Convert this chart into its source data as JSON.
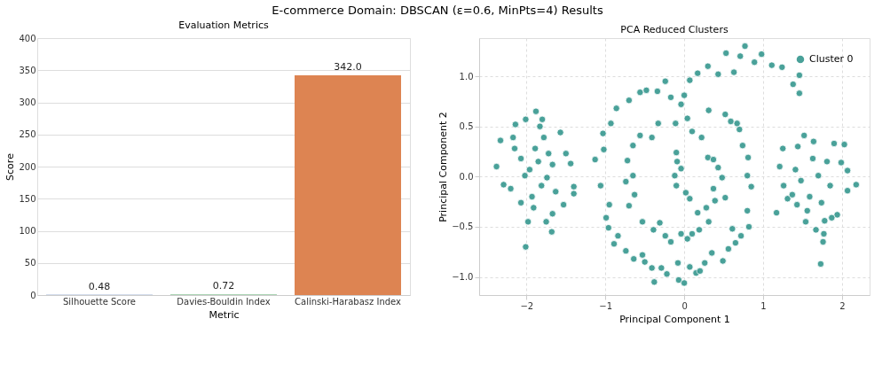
{
  "chart_data": [
    {
      "type": "bar",
      "title": "Evaluation Metrics",
      "xlabel": "Metric",
      "ylabel": "Score",
      "annotations": [
        "E-commerce Domain: DBSCAN (ε=0.6, MinPts=4) Results"
      ],
      "categories": [
        "Silhouette Score",
        "Davies-Bouldin Index",
        "Calinski-Harabasz Index"
      ],
      "values": [
        0.48,
        0.72,
        342.0
      ],
      "colors": [
        "#4c72b0",
        "#55a868",
        "#dd8452"
      ],
      "value_labels": [
        "0.48",
        "0.72",
        "342.0"
      ],
      "ylim": [
        0,
        400
      ],
      "yticks": [
        0,
        50,
        100,
        150,
        200,
        250,
        300,
        350,
        400
      ],
      "grid": "y"
    },
    {
      "type": "scatter",
      "title": "PCA Reduced Clusters",
      "xlabel": "Principal Component 1",
      "ylabel": "Principal Component 2",
      "xlim": [
        -2.6,
        2.35
      ],
      "xticks": [
        -2,
        -1,
        0,
        1,
        2
      ],
      "ylim": [
        -1.18,
        1.38
      ],
      "yticks": [
        {
          "value": -1,
          "label": "−1.0"
        },
        {
          "value": -0.5,
          "label": "−0.5"
        },
        {
          "value": 0,
          "label": "0.0"
        },
        {
          "value": 0.5,
          "label": "0.5"
        },
        {
          "value": 1,
          "label": "1.0"
        }
      ],
      "grid": true,
      "legend": "top right",
      "marker": "circle",
      "series": [
        {
          "name": "Cluster 0",
          "color": "#2a9188",
          "x": [
            -2.38,
            -2.33,
            -2.29,
            -2.17,
            -2.14,
            -2.01,
            -1.88,
            -1.8,
            -1.83,
            -1.57,
            -1.5,
            -1.44,
            -1.4,
            -1.4,
            -1.53,
            -1.67,
            -1.68,
            -1.75,
            -1.98,
            -2.01,
            -2.2,
            -2.07,
            -1.96,
            -1.85,
            -1.74,
            -1.67,
            -2.15,
            -1.93,
            -1.81,
            -2.02,
            -1.89,
            -1.63,
            -2.07,
            -1.91,
            -1.72,
            -1.78,
            1.52,
            1.25,
            1.21,
            1.17,
            1.26,
            1.31,
            1.44,
            1.64,
            1.9,
            2.03,
            1.99,
            2.07,
            2.18,
            2.07,
            1.94,
            1.87,
            1.78,
            1.77,
            1.76,
            1.73,
            1.67,
            1.54,
            1.43,
            1.37,
            1.48,
            1.59,
            1.7,
            1.81,
            1.63,
            1.41,
            1.74,
            1.85,
            1.56,
            -1.13,
            -1.06,
            -1.02,
            -1.03,
            -0.93,
            -0.86,
            -0.7,
            -0.56,
            -0.48,
            -0.34,
            -0.24,
            -0.17,
            0.0,
            0.07,
            0.17,
            0.3,
            0.43,
            0.53,
            0.63,
            0.71,
            0.77,
            0.89,
            0.98,
            1.11,
            1.24,
            1.38,
            1.46,
            1.46,
            -0.95,
            -0.99,
            -0.96,
            -0.89,
            -0.84,
            -0.74,
            -0.64,
            -0.53,
            -0.5,
            -0.41,
            -0.38,
            -0.29,
            -0.22,
            -0.08,
            -0.07,
            0.0,
            0.07,
            0.15,
            0.2,
            0.26,
            0.35,
            0.49,
            0.56,
            0.65,
            0.72,
            0.61,
            0.82,
            0.85,
            0.81,
            0.74,
            0.7,
            0.67,
            0.59,
            0.52,
            0.31,
            0.8,
            0.8,
            -0.33,
            -0.41,
            -0.56,
            -0.65,
            -0.72,
            -0.65,
            -0.74,
            -0.63,
            -0.7,
            -0.53,
            -0.39,
            -0.31,
            -0.24,
            -0.17,
            -0.04,
            0.04,
            0.1,
            0.19,
            0.31,
            0.39,
            0.48,
            0.43,
            0.3,
            0.22,
            0.1,
            0.04,
            -0.04,
            -0.11,
            -0.1,
            -0.09,
            -0.12,
            -0.1,
            0.02,
            0.07,
            0.17,
            0.28,
            0.37,
            0.52,
            0.37,
            -0.04
          ],
          "values": [
            0.1,
            0.36,
            -0.08,
            0.39,
            0.52,
            0.57,
            0.65,
            0.57,
            0.5,
            0.44,
            0.23,
            0.13,
            -0.1,
            -0.17,
            -0.28,
            -0.37,
            -0.55,
            -0.45,
            -0.45,
            -0.7,
            -0.12,
            0.18,
            0.07,
            0.15,
            -0.01,
            0.12,
            0.28,
            -0.2,
            -0.09,
            0.01,
            0.28,
            -0.15,
            -0.26,
            -0.31,
            0.23,
            0.39,
            0.41,
            0.28,
            0.1,
            -0.36,
            -0.09,
            -0.22,
            0.3,
            0.35,
            0.33,
            0.32,
            0.14,
            0.06,
            -0.08,
            -0.14,
            -0.38,
            -0.41,
            -0.44,
            -0.57,
            -0.65,
            -0.87,
            -0.53,
            -0.45,
            -0.28,
            -0.18,
            -0.04,
            -0.2,
            0.01,
            0.15,
            0.18,
            0.07,
            -0.26,
            -0.09,
            -0.34,
            0.17,
            -0.09,
            0.27,
            0.43,
            0.53,
            0.68,
            0.76,
            0.84,
            0.86,
            0.85,
            0.95,
            0.79,
            0.81,
            0.96,
            1.03,
            1.1,
            1.02,
            1.23,
            1.04,
            1.2,
            1.3,
            1.14,
            1.22,
            1.11,
            1.09,
            0.92,
            1.01,
            0.83,
            -0.28,
            -0.41,
            -0.51,
            -0.67,
            -0.59,
            -0.74,
            -0.82,
            -0.78,
            -0.85,
            -0.91,
            -1.05,
            -0.91,
            -0.97,
            -0.86,
            -1.03,
            -1.06,
            -0.9,
            -0.96,
            -0.94,
            -0.86,
            -0.76,
            -0.84,
            -0.72,
            -0.66,
            -0.59,
            -0.52,
            -0.5,
            -0.1,
            0.19,
            0.31,
            0.47,
            0.53,
            0.55,
            0.62,
            0.66,
            -0.34,
            0.01,
            0.53,
            0.39,
            0.41,
            0.31,
            0.16,
            0.01,
            -0.05,
            -0.18,
            -0.29,
            -0.45,
            -0.53,
            -0.46,
            -0.59,
            -0.65,
            -0.57,
            -0.62,
            -0.57,
            -0.53,
            -0.45,
            -0.24,
            -0.01,
            0.09,
            0.19,
            0.39,
            0.45,
            0.58,
            0.72,
            0.53,
            0.24,
            0.15,
            0.01,
            -0.09,
            -0.16,
            -0.22,
            -0.36,
            -0.31,
            -0.12,
            -0.21,
            0.17,
            0.08
          ]
        }
      ]
    }
  ]
}
